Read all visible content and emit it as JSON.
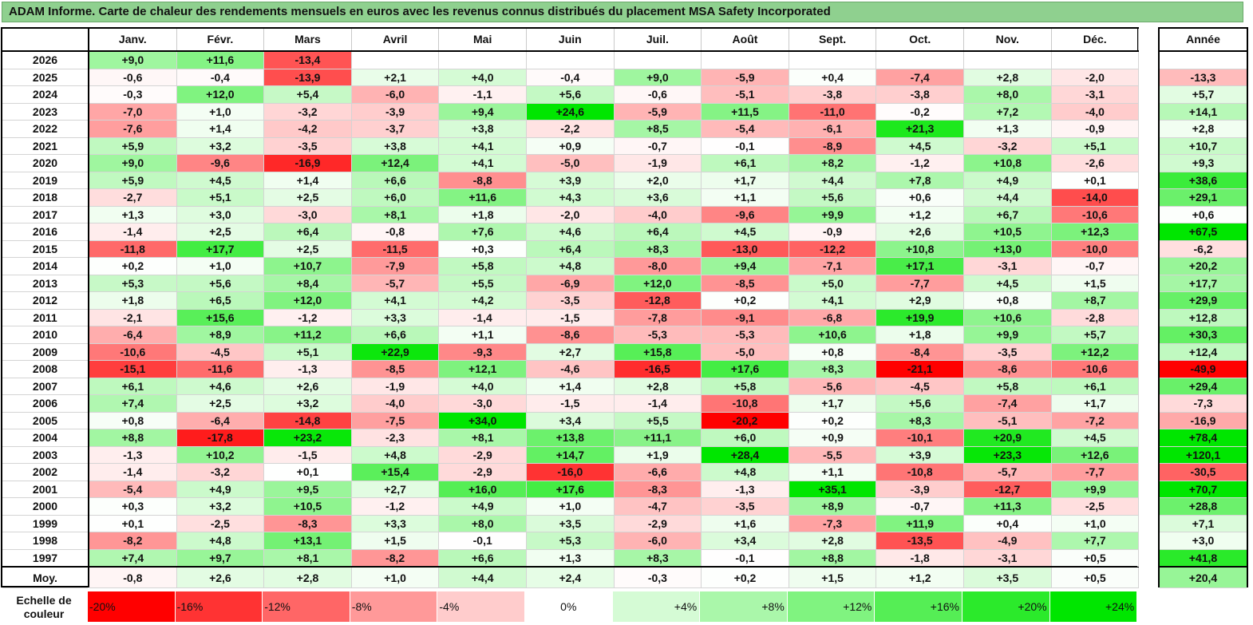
{
  "title": "ADAM Informe. Carte de chaleur des rendements mensuels en euros avec les revenus connus distribués du placement MSA Safety Incorporated",
  "chart_data": {
    "type": "heatmap",
    "title": "ADAM Informe. Carte de chaleur des rendements mensuels en euros avec les revenus connus distribués du placement MSA Safety Incorporated",
    "months": [
      "Janv.",
      "Févr.",
      "Mars",
      "Avril",
      "Mai",
      "Juin",
      "Juil.",
      "Août",
      "Sept.",
      "Oct.",
      "Nov.",
      "Déc."
    ],
    "year_header": "Année",
    "rows": [
      {
        "year": "2026",
        "values": [
          "+9,0",
          "+11,6",
          "-13,4",
          "",
          "",
          "",
          "",
          "",
          "",
          "",
          "",
          ""
        ],
        "annual": ""
      },
      {
        "year": "2025",
        "values": [
          "-0,6",
          "-0,4",
          "-13,9",
          "+2,1",
          "+4,0",
          "-0,4",
          "+9,0",
          "-5,9",
          "+0,4",
          "-7,4",
          "+2,8",
          "-2,0"
        ],
        "annual": "-13,3"
      },
      {
        "year": "2024",
        "values": [
          "-0,3",
          "+12,0",
          "+5,4",
          "-6,0",
          "-1,1",
          "+5,6",
          "-0,6",
          "-5,1",
          "-3,8",
          "-3,8",
          "+8,0",
          "-3,1"
        ],
        "annual": "+5,7"
      },
      {
        "year": "2023",
        "values": [
          "-7,0",
          "+1,0",
          "-3,2",
          "-3,9",
          "+9,4",
          "+24,6",
          "-5,9",
          "+11,5",
          "-11,0",
          "-0,2",
          "+7,2",
          "-4,0"
        ],
        "annual": "+14,1"
      },
      {
        "year": "2022",
        "values": [
          "-7,6",
          "+1,4",
          "-4,2",
          "-3,7",
          "+3,8",
          "-2,2",
          "+8,5",
          "-5,4",
          "-6,1",
          "+21,3",
          "+1,3",
          "-0,9"
        ],
        "annual": "+2,8"
      },
      {
        "year": "2021",
        "values": [
          "+5,9",
          "+3,2",
          "-3,5",
          "+3,8",
          "+4,1",
          "+0,9",
          "-0,7",
          "-0,1",
          "-8,9",
          "+4,5",
          "-3,2",
          "+5,1"
        ],
        "annual": "+10,7"
      },
      {
        "year": "2020",
        "values": [
          "+9,0",
          "-9,6",
          "-16,9",
          "+12,4",
          "+4,1",
          "-5,0",
          "-1,9",
          "+6,1",
          "+8,2",
          "-1,2",
          "+10,8",
          "-2,6"
        ],
        "annual": "+9,3"
      },
      {
        "year": "2019",
        "values": [
          "+5,9",
          "+4,5",
          "+1,4",
          "+6,6",
          "-8,8",
          "+3,9",
          "+2,0",
          "+1,7",
          "+4,4",
          "+7,8",
          "+4,9",
          "+0,1"
        ],
        "annual": "+38,6"
      },
      {
        "year": "2018",
        "values": [
          "-2,7",
          "+5,1",
          "+2,5",
          "+6,0",
          "+11,6",
          "+4,3",
          "+3,6",
          "+1,1",
          "+5,6",
          "+0,6",
          "+4,4",
          "-14,0"
        ],
        "annual": "+29,1"
      },
      {
        "year": "2017",
        "values": [
          "+1,3",
          "+3,0",
          "-3,0",
          "+8,1",
          "+1,8",
          "-2,0",
          "-4,0",
          "-9,6",
          "+9,9",
          "+1,2",
          "+6,7",
          "-10,6"
        ],
        "annual": "+0,6"
      },
      {
        "year": "2016",
        "values": [
          "-1,4",
          "+2,5",
          "+6,4",
          "-0,8",
          "+7,6",
          "+4,6",
          "+6,4",
          "+4,5",
          "-0,9",
          "+2,6",
          "+10,5",
          "+12,3"
        ],
        "annual": "+67,5"
      },
      {
        "year": "2015",
        "values": [
          "-11,8",
          "+17,7",
          "+2,5",
          "-11,5",
          "+0,3",
          "+6,4",
          "+8,3",
          "-13,0",
          "-12,2",
          "+10,8",
          "+13,0",
          "-10,0"
        ],
        "annual": "-6,2"
      },
      {
        "year": "2014",
        "values": [
          "+0,2",
          "+1,0",
          "+10,7",
          "-7,9",
          "+5,8",
          "+4,8",
          "-8,0",
          "+9,4",
          "-7,1",
          "+17,1",
          "-3,1",
          "-0,7"
        ],
        "annual": "+20,2"
      },
      {
        "year": "2013",
        "values": [
          "+5,3",
          "+5,6",
          "+8,4",
          "-5,7",
          "+5,5",
          "-6,9",
          "+12,0",
          "-8,5",
          "+5,0",
          "-7,7",
          "+4,5",
          "+1,5"
        ],
        "annual": "+17,7"
      },
      {
        "year": "2012",
        "values": [
          "+1,8",
          "+6,5",
          "+12,0",
          "+4,1",
          "+4,2",
          "-3,5",
          "-12,8",
          "+0,2",
          "+4,1",
          "+2,9",
          "+0,8",
          "+8,7"
        ],
        "annual": "+29,9"
      },
      {
        "year": "2011",
        "values": [
          "-2,1",
          "+15,6",
          "-1,2",
          "+3,3",
          "-1,4",
          "-1,5",
          "-7,8",
          "-9,1",
          "-6,8",
          "+19,9",
          "+10,6",
          "-2,8"
        ],
        "annual": "+12,8"
      },
      {
        "year": "2010",
        "values": [
          "-6,4",
          "+8,9",
          "+11,2",
          "+6,6",
          "+1,1",
          "-8,6",
          "-5,3",
          "-5,3",
          "+10,6",
          "+1,8",
          "+9,9",
          "+5,7"
        ],
        "annual": "+30,3"
      },
      {
        "year": "2009",
        "values": [
          "-10,6",
          "-4,5",
          "+5,1",
          "+22,9",
          "-9,3",
          "+2,7",
          "+15,8",
          "-5,0",
          "+0,8",
          "-8,4",
          "-3,5",
          "+12,2"
        ],
        "annual": "+12,4"
      },
      {
        "year": "2008",
        "values": [
          "-15,1",
          "-11,6",
          "-1,3",
          "-8,5",
          "+12,1",
          "-4,6",
          "-16,5",
          "+17,6",
          "+8,3",
          "-21,1",
          "-8,6",
          "-10,6"
        ],
        "annual": "-49,9"
      },
      {
        "year": "2007",
        "values": [
          "+6,1",
          "+4,6",
          "+2,6",
          "-1,9",
          "+4,0",
          "+1,4",
          "+2,8",
          "+5,8",
          "-5,6",
          "-4,5",
          "+5,8",
          "+6,1"
        ],
        "annual": "+29,4"
      },
      {
        "year": "2006",
        "values": [
          "+7,4",
          "+2,5",
          "+3,2",
          "-4,0",
          "-3,0",
          "-1,5",
          "-1,4",
          "-10,8",
          "+1,7",
          "+5,6",
          "-7,4",
          "+1,7"
        ],
        "annual": "-7,3"
      },
      {
        "year": "2005",
        "values": [
          "+0,8",
          "-6,4",
          "-14,8",
          "-7,5",
          "+34,0",
          "+3,4",
          "+5,5",
          "-20,2",
          "+0,2",
          "+8,3",
          "-5,1",
          "-7,2"
        ],
        "annual": "-16,9"
      },
      {
        "year": "2004",
        "values": [
          "+8,8",
          "-17,8",
          "+23,2",
          "-2,3",
          "+8,1",
          "+13,8",
          "+11,1",
          "+6,0",
          "+0,9",
          "-10,1",
          "+20,9",
          "+4,5"
        ],
        "annual": "+78,4"
      },
      {
        "year": "2003",
        "values": [
          "-1,3",
          "+10,2",
          "-1,5",
          "+4,8",
          "-2,9",
          "+14,7",
          "+1,9",
          "+28,4",
          "-5,5",
          "+3,9",
          "+23,3",
          "+12,6"
        ],
        "annual": "+120,1"
      },
      {
        "year": "2002",
        "values": [
          "-1,4",
          "-3,2",
          "+0,1",
          "+15,4",
          "-2,9",
          "-16,0",
          "-6,6",
          "+4,8",
          "+1,1",
          "-10,8",
          "-5,7",
          "-7,7"
        ],
        "annual": "-30,5"
      },
      {
        "year": "2001",
        "values": [
          "-5,4",
          "+4,9",
          "+9,5",
          "+2,7",
          "+16,0",
          "+17,6",
          "-8,3",
          "-1,3",
          "+35,1",
          "-3,9",
          "-12,7",
          "+9,9"
        ],
        "annual": "+70,7"
      },
      {
        "year": "2000",
        "values": [
          "+0,3",
          "+3,2",
          "+10,5",
          "-1,2",
          "+4,9",
          "+1,0",
          "-4,7",
          "-3,5",
          "+8,9",
          "-0,7",
          "+11,3",
          "-2,5"
        ],
        "annual": "+28,8"
      },
      {
        "year": "1999",
        "values": [
          "+0,1",
          "-2,5",
          "-8,3",
          "+3,3",
          "+8,0",
          "+3,5",
          "-2,9",
          "+1,6",
          "-7,3",
          "+11,9",
          "+0,4",
          "+1,0"
        ],
        "annual": "+7,1"
      },
      {
        "year": "1998",
        "values": [
          "-8,2",
          "+4,8",
          "+13,1",
          "+1,5",
          "-0,1",
          "+5,3",
          "-6,0",
          "+3,4",
          "+2,8",
          "-13,5",
          "-4,9",
          "+7,7"
        ],
        "annual": "+3,0"
      },
      {
        "year": "1997",
        "values": [
          "+7,4",
          "+9,7",
          "+8,1",
          "-8,2",
          "+6,6",
          "+1,3",
          "+8,3",
          "-0,1",
          "+8,8",
          "-1,8",
          "-3,1",
          "+0,5"
        ],
        "annual": "+41,8"
      }
    ],
    "average": {
      "label": "Moy.",
      "values": [
        "-0,8",
        "+2,6",
        "+2,8",
        "+1,0",
        "+4,4",
        "+2,4",
        "-0,3",
        "+0,2",
        "+1,5",
        "+1,2",
        "+3,5",
        "+0,5"
      ],
      "annual": "+20,4"
    },
    "scale": {
      "label_line1": "Echelle de",
      "label_line2": "couleur",
      "steps": [
        "-20%",
        "-16%",
        "-12%",
        "-8%",
        "-4%",
        "0%",
        "+4%",
        "+8%",
        "+12%",
        "+16%",
        "+20%",
        "+24%"
      ]
    },
    "colors": {
      "negative": "#ff0000",
      "neutral": "#ffffff",
      "positive": "#00e600"
    }
  }
}
